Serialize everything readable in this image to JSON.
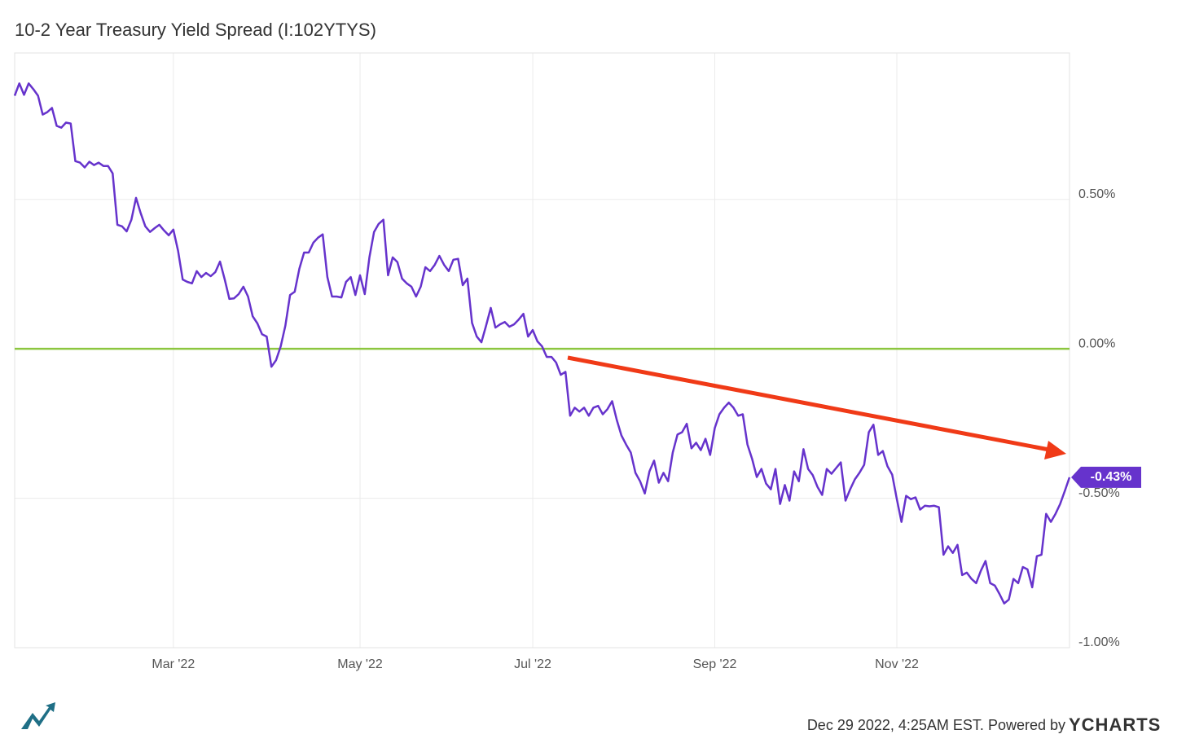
{
  "chart_data": {
    "type": "line",
    "title": "10-2 Year Treasury Yield Spread (I:102YTYS)",
    "color": "#6633cc",
    "values": [
      0.847,
      0.888,
      0.85,
      0.888,
      0.869,
      0.847,
      0.784,
      0.792,
      0.806,
      0.746,
      0.74,
      0.757,
      0.754,
      0.628,
      0.623,
      0.607,
      0.626,
      0.615,
      0.623,
      0.612,
      0.612,
      0.587,
      0.415,
      0.41,
      0.393,
      0.432,
      0.505,
      0.454,
      0.41,
      0.391,
      0.404,
      0.415,
      0.396,
      0.38,
      0.399,
      0.328,
      0.232,
      0.224,
      0.219,
      0.26,
      0.24,
      0.254,
      0.243,
      0.257,
      0.292,
      0.232,
      0.167,
      0.169,
      0.183,
      0.208,
      0.175,
      0.109,
      0.085,
      0.049,
      0.041,
      -0.06,
      -0.038,
      0.008,
      0.077,
      0.18,
      0.191,
      0.268,
      0.322,
      0.322,
      0.355,
      0.372,
      0.383,
      0.24,
      0.175,
      0.175,
      0.172,
      0.224,
      0.24,
      0.18,
      0.246,
      0.183,
      0.306,
      0.391,
      0.418,
      0.432,
      0.246,
      0.306,
      0.29,
      0.235,
      0.219,
      0.208,
      0.175,
      0.208,
      0.273,
      0.26,
      0.281,
      0.311,
      0.281,
      0.26,
      0.298,
      0.301,
      0.213,
      0.235,
      0.087,
      0.041,
      0.022,
      0.077,
      0.137,
      0.071,
      0.082,
      0.09,
      0.074,
      0.082,
      0.098,
      0.117,
      0.041,
      0.063,
      0.025,
      0.008,
      -0.027,
      -0.027,
      -0.046,
      -0.087,
      -0.077,
      -0.224,
      -0.197,
      -0.21,
      -0.197,
      -0.224,
      -0.197,
      -0.191,
      -0.219,
      -0.202,
      -0.175,
      -0.238,
      -0.29,
      -0.32,
      -0.347,
      -0.415,
      -0.443,
      -0.484,
      -0.41,
      -0.374,
      -0.448,
      -0.415,
      -0.443,
      -0.347,
      -0.287,
      -0.279,
      -0.251,
      -0.333,
      -0.314,
      -0.339,
      -0.301,
      -0.355,
      -0.265,
      -0.219,
      -0.197,
      -0.18,
      -0.197,
      -0.224,
      -0.219,
      -0.32,
      -0.369,
      -0.429,
      -0.402,
      -0.451,
      -0.47,
      -0.402,
      -0.519,
      -0.456,
      -0.508,
      -0.41,
      -0.443,
      -0.336,
      -0.402,
      -0.423,
      -0.462,
      -0.489,
      -0.402,
      -0.418,
      -0.399,
      -0.38,
      -0.508,
      -0.47,
      -0.437,
      -0.415,
      -0.388,
      -0.279,
      -0.254,
      -0.355,
      -0.342,
      -0.393,
      -0.421,
      -0.503,
      -0.579,
      -0.492,
      -0.503,
      -0.497,
      -0.538,
      -0.525,
      -0.527,
      -0.525,
      -0.53,
      -0.689,
      -0.661,
      -0.683,
      -0.656,
      -0.757,
      -0.749,
      -0.77,
      -0.784,
      -0.743,
      -0.71,
      -0.784,
      -0.792,
      -0.82,
      -0.852,
      -0.839,
      -0.77,
      -0.784,
      -0.73,
      -0.738,
      -0.798,
      -0.694,
      -0.689,
      -0.552,
      -0.579,
      -0.552,
      -0.519,
      -0.475,
      -0.43
    ],
    "last_label": {
      "value": -0.43,
      "label": "-0.43%"
    },
    "reference_line": {
      "value": 0,
      "color": "#8cc63f"
    },
    "xlim": [
      0,
      226
    ],
    "xticks": [
      {
        "value": 34,
        "label": "Mar '22"
      },
      {
        "value": 74,
        "label": "May '22"
      },
      {
        "value": 111,
        "label": "Jul '22"
      },
      {
        "value": 150,
        "label": "Sep '22"
      },
      {
        "value": 189,
        "label": "Nov '22"
      }
    ],
    "ylim": [
      -1.0,
      0.99
    ],
    "yticks": [
      {
        "value": 0.5,
        "label": "0.50%"
      },
      {
        "value": 0,
        "label": "0.00%"
      },
      {
        "value": -0.5,
        "label": "-0.50%"
      },
      {
        "value": -1.0,
        "label": "-1.00%"
      }
    ],
    "grid": true,
    "footer": "Dec 29 2022, 4:25AM EST. Powered by",
    "brand": "YCHARTS"
  }
}
